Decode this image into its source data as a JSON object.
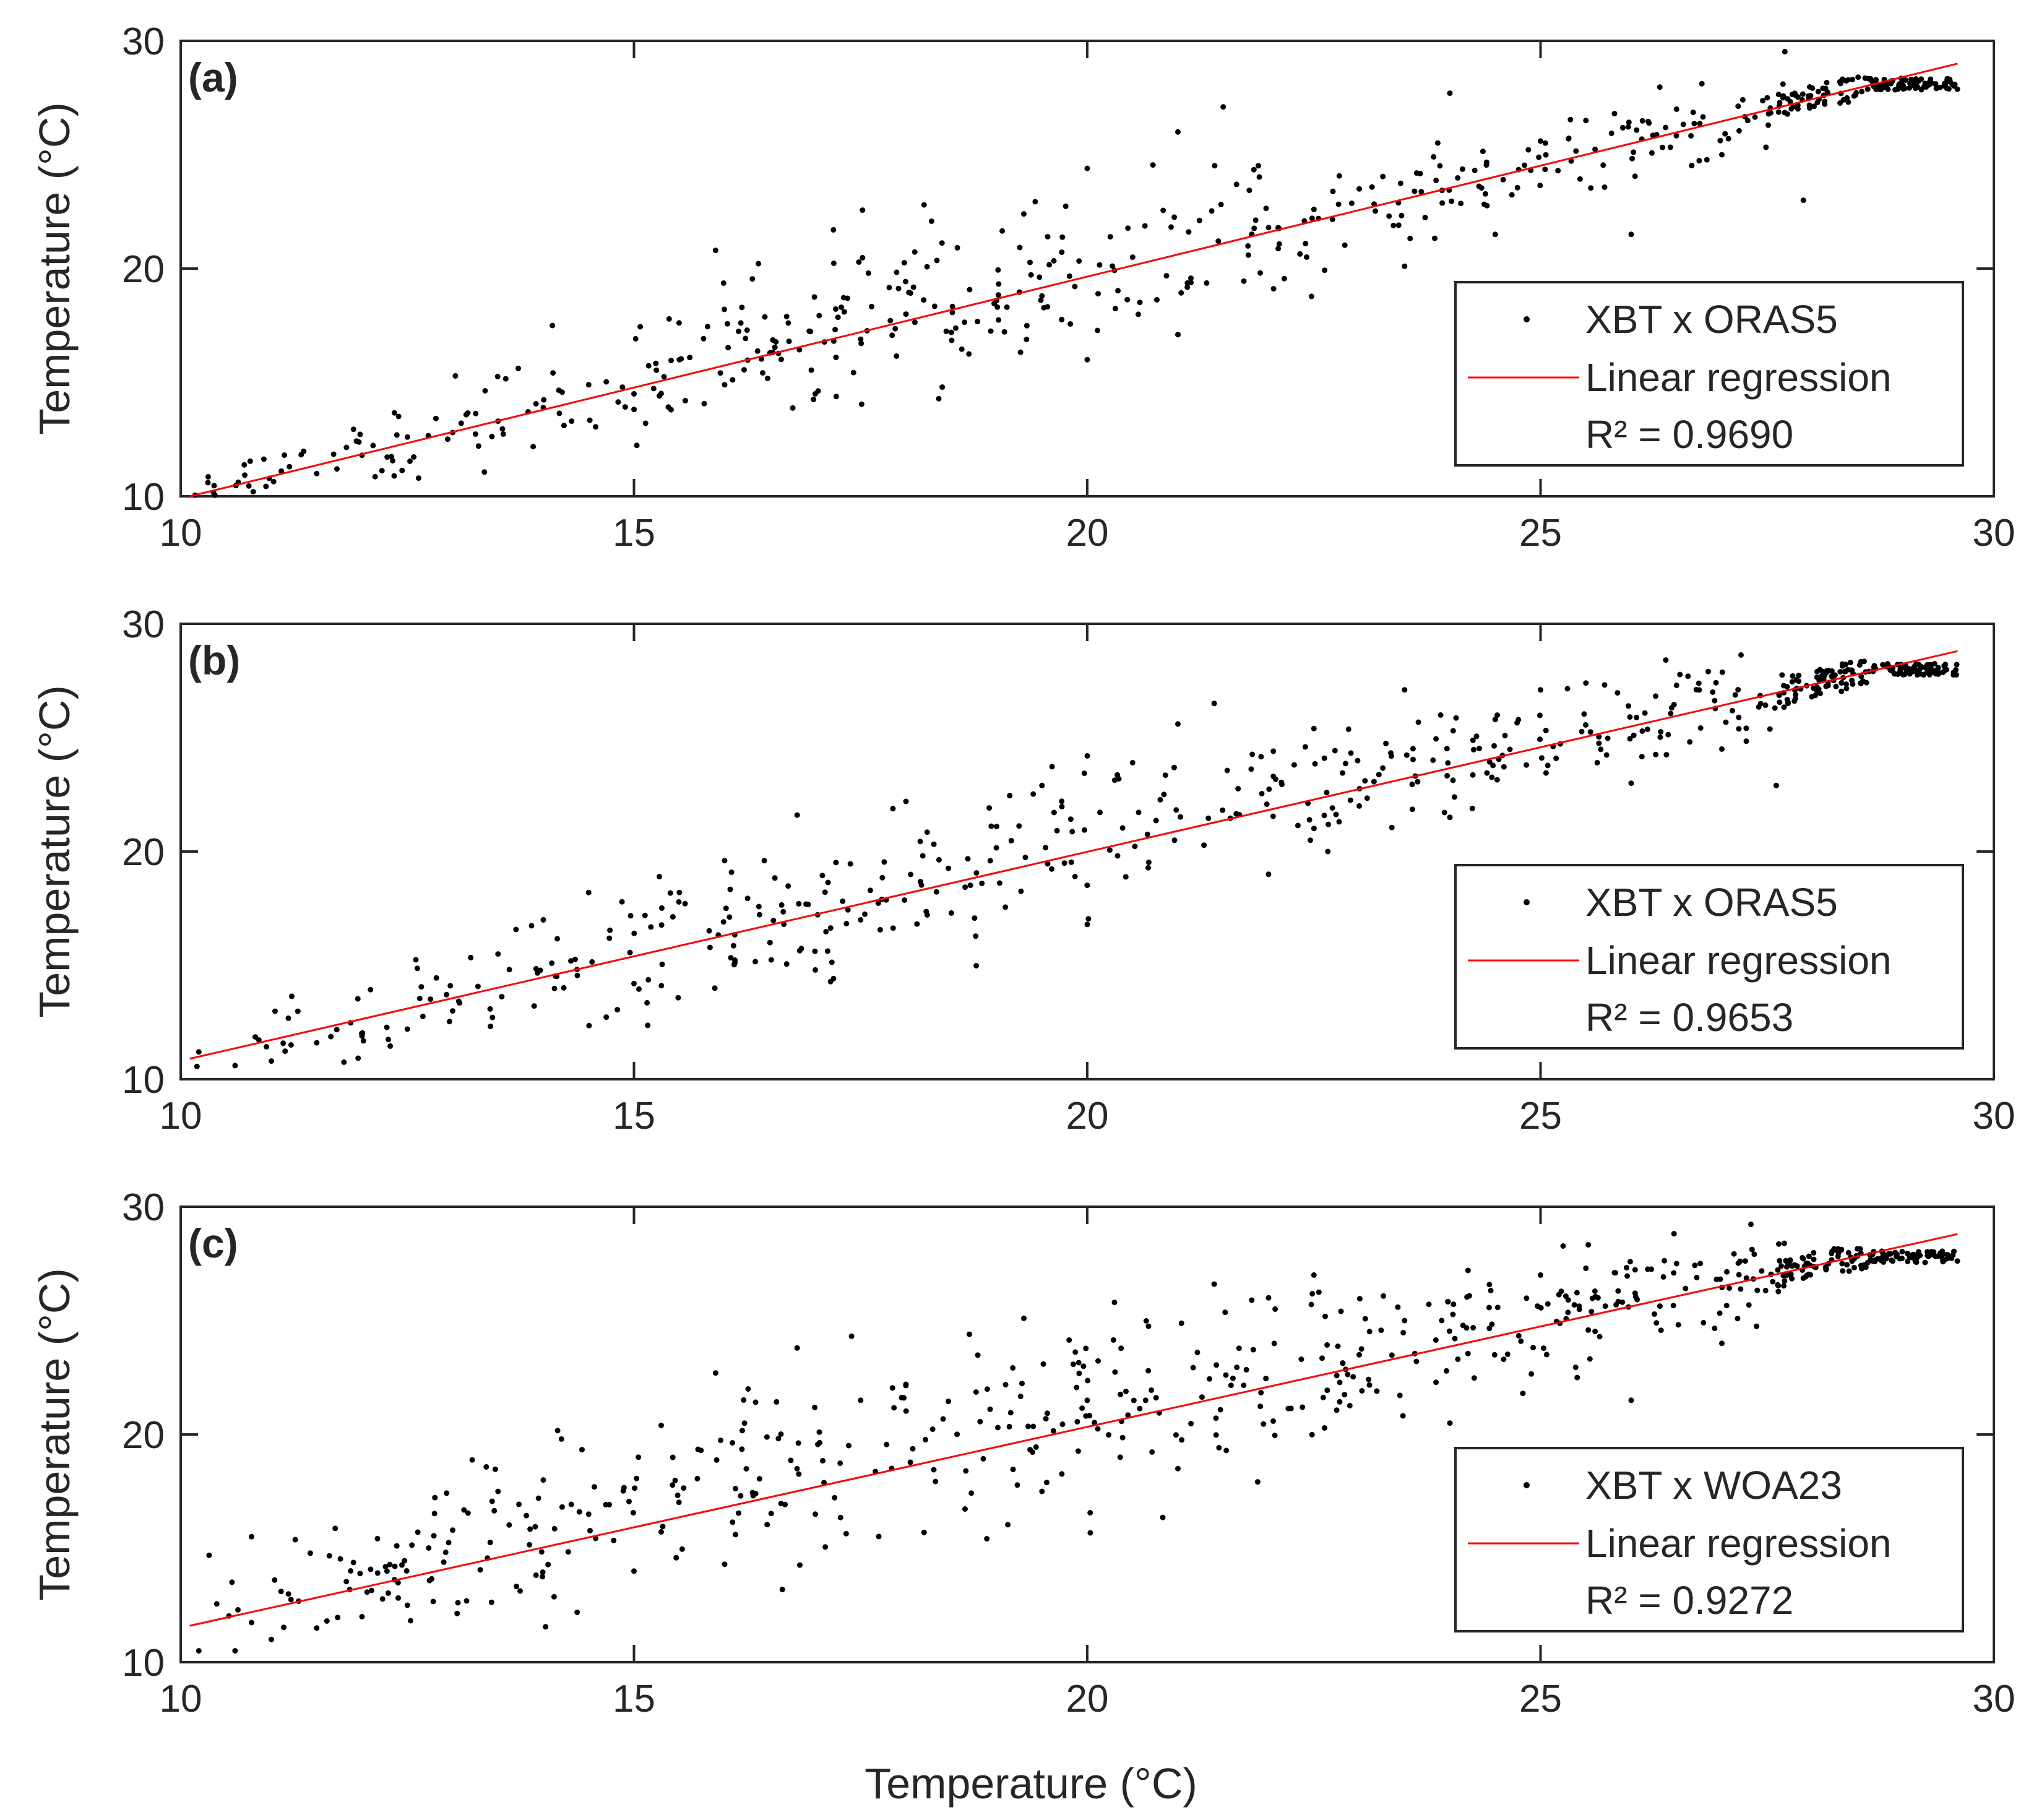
{
  "figure": {
    "xlabel": "Temperature (°C)",
    "colors": {
      "points": "#000000",
      "regression": "#ff0000",
      "axes": "#262626"
    }
  },
  "chart_data": [
    {
      "type": "scatter",
      "panel_label": "(a)",
      "xlabel": "",
      "ylabel": "Temperature (°C)",
      "xlim": [
        10,
        30
      ],
      "ylim": [
        10,
        30
      ],
      "xticks": [
        10,
        15,
        20,
        25,
        30
      ],
      "yticks": [
        10,
        20,
        30
      ],
      "legend_location": "lower-right",
      "series": [
        {
          "name": "XBT x ORAS5",
          "kind": "scatter",
          "color": "#000000"
        },
        {
          "name": "Linear regression",
          "kind": "line",
          "color": "#ff0000",
          "x": [
            10.1,
            29.6
          ],
          "y": [
            10.0,
            29.0
          ]
        }
      ],
      "r_squared_label": "R² = 0.9690",
      "cloud": {
        "n": 540,
        "spread_low": 1.0,
        "spread_high": 3.8,
        "cluster_x": [
          27.6,
          29.6
        ],
        "cluster_y": 28.1
      },
      "points": [
        [
          10.3,
          10.6
        ],
        [
          10.8,
          10.2
        ],
        [
          11.2,
          11.3
        ],
        [
          11.5,
          11.0
        ],
        [
          12.0,
          11.8
        ],
        [
          12.5,
          12.6
        ],
        [
          13.0,
          12.8
        ],
        [
          13.5,
          13.3
        ],
        [
          14.0,
          13.9
        ],
        [
          14.1,
          17.5
        ],
        [
          14.5,
          14.9
        ],
        [
          15.0,
          14.5
        ],
        [
          15.5,
          16.0
        ],
        [
          15.9,
          20.8
        ],
        [
          16.0,
          14.9
        ],
        [
          16.5,
          16.3
        ],
        [
          17.0,
          14.5
        ],
        [
          17.2,
          21.7
        ],
        [
          17.5,
          16.9
        ],
        [
          18.0,
          18.0
        ],
        [
          18.2,
          22.8
        ],
        [
          18.5,
          17.2
        ],
        [
          19.0,
          18.6
        ],
        [
          19.3,
          22.4
        ],
        [
          19.5,
          18.8
        ],
        [
          20.0,
          24.4
        ],
        [
          20.0,
          16.0
        ],
        [
          20.5,
          20.5
        ],
        [
          21.0,
          26.0
        ],
        [
          21.0,
          17.1
        ],
        [
          21.5,
          27.1
        ],
        [
          22.0,
          21.8
        ],
        [
          22.5,
          22.6
        ],
        [
          23.0,
          23.5
        ],
        [
          23.5,
          20.1
        ],
        [
          24.0,
          27.7
        ],
        [
          24.5,
          21.5
        ],
        [
          25.0,
          25.6
        ],
        [
          25.5,
          26.5
        ],
        [
          26.0,
          21.5
        ],
        [
          26.5,
          27.0
        ],
        [
          27.0,
          25.0
        ],
        [
          27.5,
          27.5
        ],
        [
          27.9,
          23.0
        ]
      ]
    },
    {
      "type": "scatter",
      "panel_label": "(b)",
      "xlabel": "",
      "ylabel": "Temperature (°C)",
      "xlim": [
        10,
        30
      ],
      "ylim": [
        10,
        30
      ],
      "xticks": [
        10,
        15,
        20,
        25,
        30
      ],
      "yticks": [
        10,
        20,
        30
      ],
      "legend_location": "lower-right",
      "series": [
        {
          "name": "XBT x ORAS5",
          "kind": "scatter",
          "color": "#000000"
        },
        {
          "name": "Linear regression",
          "kind": "line",
          "color": "#ff0000",
          "x": [
            10.1,
            29.6
          ],
          "y": [
            10.9,
            28.8
          ]
        }
      ],
      "r_squared_label": "R² = 0.9653",
      "cloud": {
        "n": 540,
        "spread_low": 1.2,
        "spread_high": 3.5,
        "cluster_x": [
          27.6,
          29.6
        ],
        "cluster_y": 28.0
      },
      "points": [
        [
          10.2,
          11.2
        ],
        [
          10.6,
          10.6
        ],
        [
          11.0,
          10.8
        ],
        [
          11.5,
          11.6
        ],
        [
          12.0,
          11.9
        ],
        [
          12.5,
          12.2
        ],
        [
          13.0,
          13.0
        ],
        [
          13.5,
          15.5
        ],
        [
          14.0,
          17.0
        ],
        [
          14.5,
          18.2
        ],
        [
          15.0,
          14.2
        ],
        [
          15.5,
          18.2
        ],
        [
          16.0,
          19.6
        ],
        [
          16.5,
          16.0
        ],
        [
          16.8,
          21.6
        ],
        [
          17.0,
          14.8
        ],
        [
          17.5,
          17.0
        ],
        [
          18.0,
          22.2
        ],
        [
          18.5,
          17.3
        ],
        [
          19.0,
          21.1
        ],
        [
          19.5,
          22.9
        ],
        [
          20.0,
          24.2
        ],
        [
          20.0,
          16.8
        ],
        [
          20.5,
          23.9
        ],
        [
          21.0,
          25.6
        ],
        [
          21.4,
          26.5
        ],
        [
          22.0,
          19.0
        ],
        [
          22.5,
          25.4
        ],
        [
          23.0,
          22.0
        ],
        [
          23.5,
          27.1
        ],
        [
          24.0,
          21.5
        ],
        [
          24.5,
          25.8
        ],
        [
          25.0,
          27.1
        ],
        [
          25.5,
          27.4
        ],
        [
          26.0,
          23.0
        ],
        [
          26.5,
          27.3
        ],
        [
          27.0,
          24.5
        ],
        [
          27.6,
          22.9
        ]
      ]
    },
    {
      "type": "scatter",
      "panel_label": "(c)",
      "xlabel": "Temperature (°C)",
      "ylabel": "Temperature (°C)",
      "xlim": [
        10,
        30
      ],
      "ylim": [
        10,
        30
      ],
      "xticks": [
        10,
        15,
        20,
        25,
        30
      ],
      "yticks": [
        10,
        20,
        30
      ],
      "legend_location": "lower-right",
      "series": [
        {
          "name": "XBT x WOA23",
          "kind": "scatter",
          "color": "#000000"
        },
        {
          "name": "Linear regression",
          "kind": "line",
          "color": "#ff0000",
          "x": [
            10.1,
            29.6
          ],
          "y": [
            11.6,
            28.8
          ]
        }
      ],
      "r_squared_label": "R² = 0.9272",
      "cloud": {
        "n": 600,
        "spread_low": 1.6,
        "spread_high": 4.5,
        "cluster_x": [
          27.6,
          29.6
        ],
        "cluster_y": 27.8
      },
      "points": [
        [
          10.2,
          10.5
        ],
        [
          10.6,
          10.5
        ],
        [
          11.0,
          11.0
        ],
        [
          11.5,
          11.5
        ],
        [
          12.0,
          12.0
        ],
        [
          12.5,
          12.5
        ],
        [
          13.0,
          15.8
        ],
        [
          13.5,
          17.5
        ],
        [
          14.0,
          18.0
        ],
        [
          14.2,
          19.8
        ],
        [
          14.5,
          16.5
        ],
        [
          15.0,
          14.0
        ],
        [
          15.3,
          20.4
        ],
        [
          15.9,
          22.7
        ],
        [
          16.0,
          14.3
        ],
        [
          16.8,
          23.8
        ],
        [
          17.0,
          16.5
        ],
        [
          17.5,
          21.5
        ],
        [
          18.0,
          22.2
        ],
        [
          18.2,
          15.7
        ],
        [
          18.7,
          24.4
        ],
        [
          19.3,
          25.1
        ],
        [
          19.5,
          17.5
        ],
        [
          20.0,
          21.5
        ],
        [
          20.3,
          25.8
        ],
        [
          21.0,
          18.5
        ],
        [
          21.4,
          26.6
        ],
        [
          22.0,
          26.0
        ],
        [
          22.5,
          27.0
        ],
        [
          23.0,
          23.5
        ],
        [
          23.5,
          25.0
        ],
        [
          24.0,
          20.5
        ],
        [
          24.2,
          27.2
        ],
        [
          25.0,
          27.0
        ],
        [
          25.5,
          27.3
        ],
        [
          26.0,
          21.5
        ],
        [
          26.5,
          27.5
        ],
        [
          27.0,
          24.0
        ],
        [
          27.2,
          27.6
        ]
      ]
    }
  ]
}
